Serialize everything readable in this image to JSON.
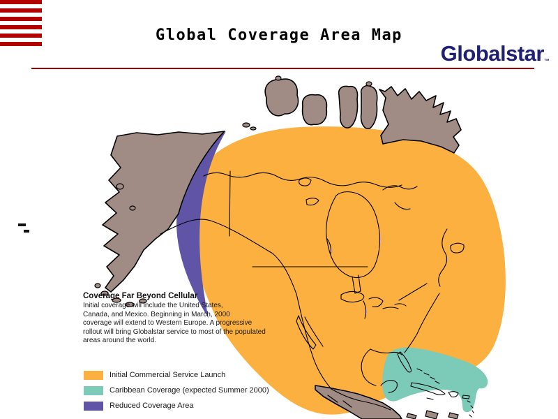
{
  "slide": {
    "title": "Global Coverage Area Map"
  },
  "logo": {
    "text": "Globalstar",
    "trademark": "™",
    "color": "#1F1F73"
  },
  "header": {
    "rule_color": "#A00000",
    "flag_icon": {
      "stripe_color": "#B00000",
      "stripe_count": 6
    }
  },
  "coverage_note": {
    "heading": "Coverage Far Beyond Cellular",
    "lines": [
      "Initial coverage will include the United States,",
      "Canada, and Mexico. Beginning in March, 2000",
      "coverage will extend to Western Europe. A progressive",
      "rollout will bring Globalstar service to most of the populated",
      "areas around the world."
    ]
  },
  "legend": {
    "items": [
      {
        "id": "initial-commercial-service",
        "label": "Initial Commercial Service Launch",
        "color": "#FBB040"
      },
      {
        "id": "caribbean-coverage",
        "label": "Caribbean Coverage (expected Summer 2000)",
        "color": "#7CCBB8"
      },
      {
        "id": "reduced-coverage",
        "label": "Reduced Coverage Area",
        "color": "#5F54A6"
      }
    ]
  },
  "map": {
    "land_color": "#A18C85",
    "outline_color": "#000000",
    "regions": [
      "Alaska",
      "Canada",
      "United States",
      "Mexico",
      "Central America",
      "Arctic Islands",
      "Greenland",
      "Caribbean"
    ]
  }
}
